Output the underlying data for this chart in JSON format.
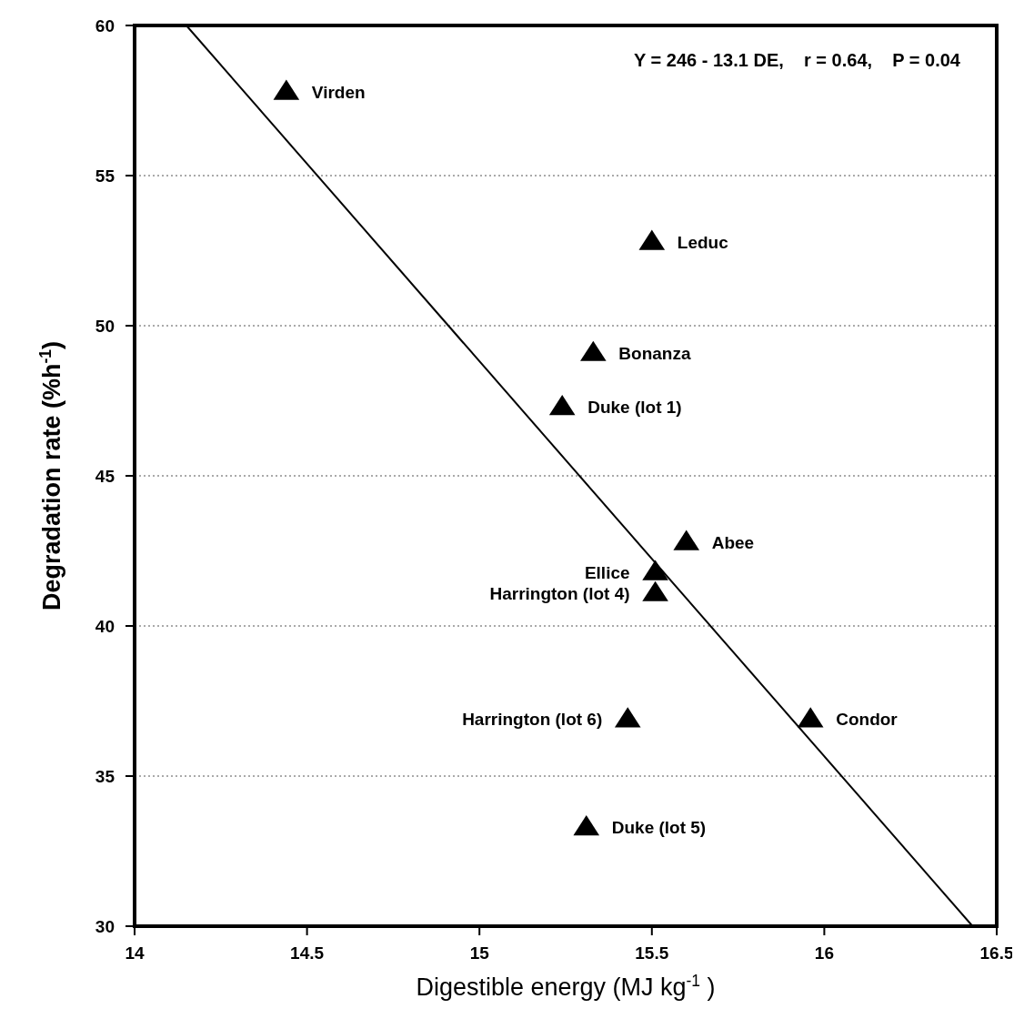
{
  "chart_data": {
    "type": "scatter",
    "xlabel": "Digestible energy (MJ kg$^{-1}$ )",
    "ylabel": "Degradation rate (%h$^{-1}$)",
    "xlim": [
      14,
      16.5
    ],
    "xticks": [
      14,
      14.5,
      15,
      15.5,
      16,
      16.5
    ],
    "ylim": [
      30,
      60
    ],
    "yticks": [
      30,
      35,
      40,
      45,
      50,
      55,
      60
    ],
    "grid": "y",
    "marker": "triangle",
    "series": [
      {
        "color": "#000000",
        "x": [
          14.44,
          15.5,
          15.33,
          15.24,
          15.6,
          15.51,
          15.51,
          15.43,
          15.96,
          15.31
        ],
        "values": [
          57.8,
          52.8,
          49.1,
          47.3,
          42.8,
          41.8,
          41.1,
          36.9,
          36.9,
          33.3
        ]
      },
      {
        "type": "line",
        "color": "#000000",
        "x": [
          14.15,
          16.43
        ],
        "values": [
          60,
          30
        ],
        "marker": "none",
        "line_style": "solid"
      }
    ],
    "annotations": [
      {
        "text": "Virden",
        "x": 14.44,
        "y": 57.8
      },
      {
        "text": "Leduc",
        "x": 15.5,
        "y": 52.8
      },
      {
        "text": "Bonanza",
        "x": 15.33,
        "y": 49.1
      },
      {
        "text": "Duke (lot 1)",
        "x": 15.24,
        "y": 47.3
      },
      {
        "text": "Abee",
        "x": 15.6,
        "y": 42.8
      },
      {
        "text": "Ellice",
        "x": 15.51,
        "y": 41.8
      },
      {
        "text": "Harrington (lot 4)",
        "x": 15.51,
        "y": 41.1
      },
      {
        "text": "Harrington (lot 6)",
        "x": 15.43,
        "y": 36.9
      },
      {
        "text": "Condor",
        "x": 15.96,
        "y": 36.9
      },
      {
        "text": "Duke (lot 5)",
        "x": 15.31,
        "y": 33.3
      },
      "Y = 246 - 13.1 DE,    r = 0.64,    P = 0.04"
    ]
  }
}
